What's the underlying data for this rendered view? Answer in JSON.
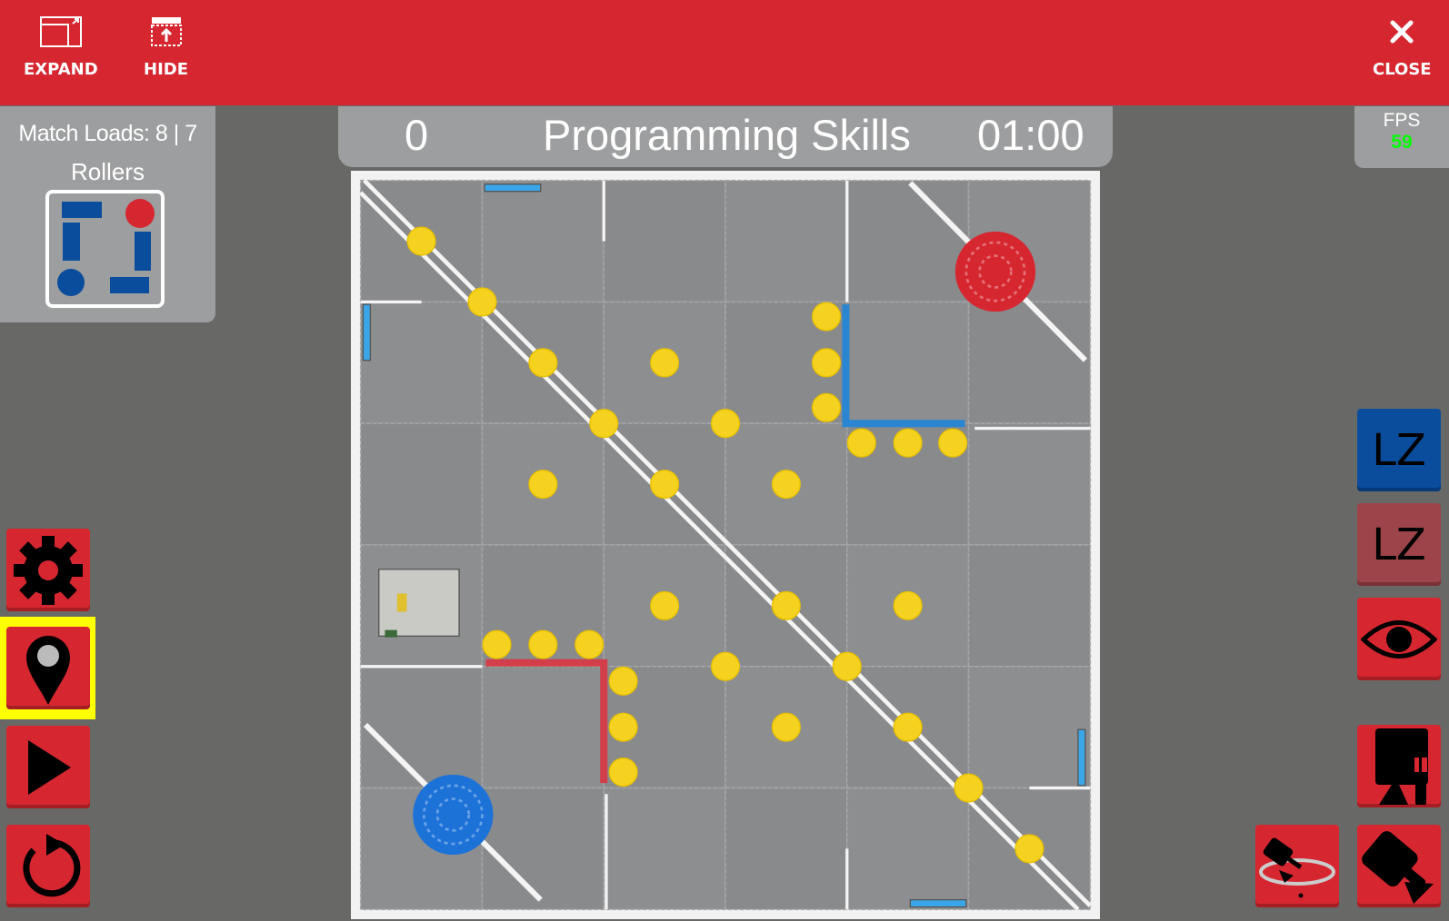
{
  "topbar": {
    "expand_label": "EXPAND",
    "hide_label": "HIDE",
    "close_label": "CLOSE"
  },
  "left_panel": {
    "match_loads": "Match Loads: 8 | 7",
    "rollers_title": "Rollers"
  },
  "scoreboard": {
    "score": "0",
    "mode": "Programming Skills",
    "timer": "01:00"
  },
  "fps": {
    "label": "FPS",
    "value": "59",
    "value_color": "#00ff00"
  },
  "right_buttons": {
    "lz_blue": "LZ",
    "lz_red": "LZ"
  },
  "colors": {
    "brand_red": "#d62730",
    "alliance_blue": "#0a4d9c",
    "alliance_red": "#d62730",
    "disc_yellow": "#f5d21f",
    "highlight": "#ffff00"
  },
  "icons": [
    "expand-icon",
    "hide-icon",
    "close-icon",
    "gear-icon",
    "location-pin-icon",
    "play-icon",
    "reset-icon",
    "eye-icon",
    "camera-follow-icon",
    "camera-orbit-icon",
    "camera-free-icon"
  ]
}
